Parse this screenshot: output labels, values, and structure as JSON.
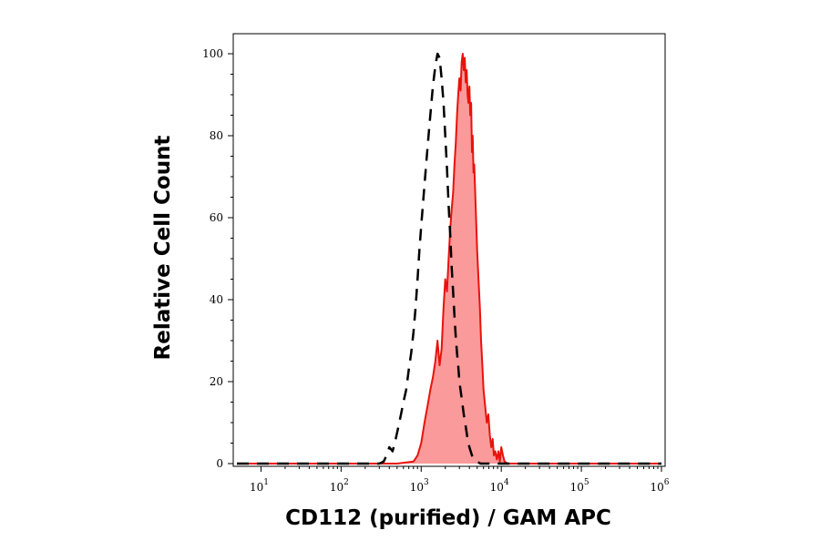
{
  "chart_data": {
    "type": "area",
    "xlabel": "CD112 (purified) / GAM APC",
    "ylabel": "Relative Cell Count",
    "x_scale": "log",
    "xlim": [
      5,
      1000000
    ],
    "ylim": [
      0,
      103
    ],
    "grid": false,
    "legend": "none",
    "y_ticks": [
      0,
      20,
      40,
      60,
      80,
      100
    ],
    "x_ticks": [
      {
        "base": "10",
        "exp": "1",
        "value": 10
      },
      {
        "base": "10",
        "exp": "2",
        "value": 100
      },
      {
        "base": "10",
        "exp": "3",
        "value": 1000
      },
      {
        "base": "10",
        "exp": "4",
        "value": 10000
      },
      {
        "base": "10",
        "exp": "5",
        "value": 100000
      },
      {
        "base": "10",
        "exp": "6",
        "value": 1000000
      }
    ],
    "series": [
      {
        "style": "filled",
        "color": "#e8120c",
        "fill": "#fb9a9a",
        "points": [
          [
            5,
            0
          ],
          [
            500,
            0
          ],
          [
            800,
            0.5
          ],
          [
            900,
            2
          ],
          [
            1000,
            5
          ],
          [
            1100,
            10
          ],
          [
            1200,
            14
          ],
          [
            1300,
            18
          ],
          [
            1400,
            21
          ],
          [
            1500,
            25
          ],
          [
            1600,
            30
          ],
          [
            1700,
            24
          ],
          [
            1800,
            28
          ],
          [
            1900,
            38
          ],
          [
            2000,
            45
          ],
          [
            2100,
            42
          ],
          [
            2200,
            50
          ],
          [
            2300,
            57
          ],
          [
            2400,
            62
          ],
          [
            2500,
            66
          ],
          [
            2600,
            73
          ],
          [
            2700,
            78
          ],
          [
            2800,
            85
          ],
          [
            2900,
            90
          ],
          [
            3000,
            94
          ],
          [
            3100,
            91
          ],
          [
            3200,
            98
          ],
          [
            3300,
            100
          ],
          [
            3400,
            96
          ],
          [
            3500,
            99
          ],
          [
            3600,
            93
          ],
          [
            3700,
            96
          ],
          [
            3800,
            90
          ],
          [
            3900,
            88
          ],
          [
            4000,
            92
          ],
          [
            4100,
            85
          ],
          [
            4200,
            88
          ],
          [
            4300,
            76
          ],
          [
            4400,
            80
          ],
          [
            4500,
            71
          ],
          [
            4600,
            73
          ],
          [
            4800,
            62
          ],
          [
            5000,
            52
          ],
          [
            5200,
            45
          ],
          [
            5400,
            38
          ],
          [
            5600,
            30
          ],
          [
            5800,
            24
          ],
          [
            6000,
            18
          ],
          [
            6300,
            14
          ],
          [
            6600,
            10
          ],
          [
            6900,
            12
          ],
          [
            7200,
            7
          ],
          [
            7500,
            4
          ],
          [
            7800,
            6
          ],
          [
            8100,
            2
          ],
          [
            8400,
            3
          ],
          [
            8800,
            1
          ],
          [
            9200,
            3
          ],
          [
            9600,
            0.5
          ],
          [
            10000,
            4
          ],
          [
            10500,
            2
          ],
          [
            11000,
            0.5
          ],
          [
            12000,
            0
          ],
          [
            1000000,
            0
          ]
        ]
      },
      {
        "style": "dashed",
        "color": "#000000",
        "points": [
          [
            5,
            0
          ],
          [
            200,
            0
          ],
          [
            300,
            0
          ],
          [
            340,
            0.5
          ],
          [
            370,
            2
          ],
          [
            400,
            4
          ],
          [
            440,
            3
          ],
          [
            480,
            6
          ],
          [
            520,
            9
          ],
          [
            560,
            12
          ],
          [
            600,
            15
          ],
          [
            650,
            18
          ],
          [
            700,
            23
          ],
          [
            750,
            27
          ],
          [
            800,
            32
          ],
          [
            850,
            38
          ],
          [
            900,
            45
          ],
          [
            950,
            52
          ],
          [
            1000,
            58
          ],
          [
            1100,
            68
          ],
          [
            1200,
            77
          ],
          [
            1300,
            85
          ],
          [
            1400,
            92
          ],
          [
            1500,
            97
          ],
          [
            1600,
            100
          ],
          [
            1700,
            99
          ],
          [
            1800,
            94
          ],
          [
            1900,
            88
          ],
          [
            2000,
            80
          ],
          [
            2100,
            72
          ],
          [
            2200,
            63
          ],
          [
            2300,
            56
          ],
          [
            2400,
            48
          ],
          [
            2500,
            42
          ],
          [
            2600,
            36
          ],
          [
            2700,
            31
          ],
          [
            2800,
            27
          ],
          [
            2900,
            24
          ],
          [
            3000,
            20
          ],
          [
            3200,
            16
          ],
          [
            3400,
            12
          ],
          [
            3600,
            9
          ],
          [
            3800,
            6
          ],
          [
            4000,
            4
          ],
          [
            4300,
            2
          ],
          [
            4600,
            1
          ],
          [
            5000,
            0.5
          ],
          [
            5500,
            0
          ],
          [
            1000000,
            0
          ]
        ]
      }
    ]
  }
}
